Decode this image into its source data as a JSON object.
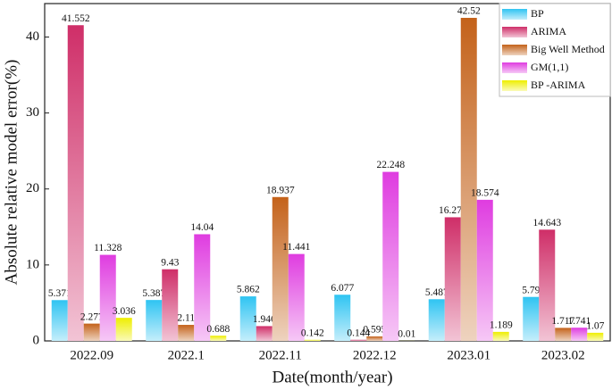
{
  "chart_data": {
    "type": "bar",
    "xlabel": "Date(month/year)",
    "ylabel": "Absolute relative model error(%)",
    "categories": [
      "2022.09",
      "2022.1",
      "2022.11",
      "2022.12",
      "2023.01",
      "2023.02"
    ],
    "series": [
      {
        "name": "BP",
        "color": "#2fc4f2",
        "values": [
          5.371,
          5.387,
          5.862,
          6.077,
          5.487,
          5.79
        ]
      },
      {
        "name": "ARIMA",
        "color": "#cf2e68",
        "values": [
          41.552,
          9.43,
          1.946,
          0.144,
          16.274,
          14.643
        ]
      },
      {
        "name": "Big Well Method",
        "color": "#c4621a",
        "values": [
          2.277,
          2.11,
          18.937,
          0.595,
          42.52,
          1.717
        ]
      },
      {
        "name": "GM(1,1)",
        "color": "#df3ce0",
        "values": [
          11.328,
          14.04,
          11.441,
          22.248,
          18.574,
          1.741
        ]
      },
      {
        "name": "BP -ARIMA",
        "color": "#eeee00",
        "values": [
          3.036,
          0.688,
          0.142,
          0.01,
          1.189,
          1.07
        ]
      }
    ],
    "ylim": [
      0,
      44.4
    ],
    "yticks": [
      0,
      10,
      20,
      30,
      40
    ],
    "grid": false,
    "legend": "upper right",
    "data_labels": true
  }
}
